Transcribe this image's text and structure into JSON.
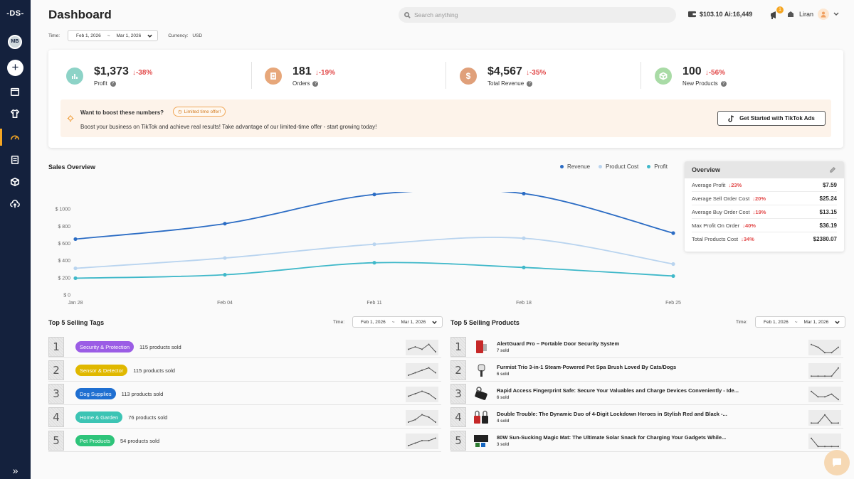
{
  "sidebar": {
    "logo": "-DS-",
    "avatar_initials": "MB",
    "add_label": "+",
    "items": [
      "store-icon",
      "tshirt-icon",
      "gauge-icon",
      "document-icon",
      "box-icon",
      "cloud-upload-icon"
    ],
    "active_item": "gauge-icon",
    "expand_label": "»"
  },
  "header": {
    "title": "Dashboard",
    "search_placeholder": "Search anything",
    "balance": "$103.10 Ai:16,449",
    "notification_count": "1",
    "user_name": "Liran"
  },
  "filters": {
    "time_label": "Time:",
    "date_from": "Feb 1, 2026",
    "date_sep": "~",
    "date_to": "Mar 1, 2026",
    "currency_label": "Currency:",
    "currency": "USD"
  },
  "kpis": [
    {
      "value": "$1,373",
      "change": "↓-38%",
      "label": "Profit",
      "color": "#8dd3c7"
    },
    {
      "value": "181",
      "change": "↓-19%",
      "label": "Orders",
      "color": "#e7a77a"
    },
    {
      "value": "$4,567",
      "change": "↓-35%",
      "label": "Total Revenue",
      "color": "#e0a07a"
    },
    {
      "value": "100",
      "change": "↓-56%",
      "label": "New Products",
      "color": "#a9dba6"
    }
  ],
  "promo": {
    "title": "Want to boost these numbers?",
    "badge": "Limited time offer!",
    "subtitle": "Boost your business on TikTok and achieve real results! Take advantage of our limited-time offer - start growing today!",
    "button": "Get Started with TikTok Ads"
  },
  "sales": {
    "title": "Sales Overview",
    "legend": [
      {
        "name": "Revenue",
        "color": "#2b6cc4"
      },
      {
        "name": "Product Cost",
        "color": "#b9d4ef"
      },
      {
        "name": "Profit",
        "color": "#3fb8c9"
      }
    ]
  },
  "chart_data": {
    "type": "line",
    "title": "Sales Overview",
    "x": [
      "Jan 28",
      "Feb 04",
      "Feb 11",
      "Feb 18",
      "Feb 25"
    ],
    "x_ticks": [
      "Jan 28",
      "Feb 04",
      "Feb 11",
      "Feb 18",
      "Feb 25"
    ],
    "y_ticks": [
      "$ 0",
      "$ 200",
      "$ 400",
      "$ 600",
      "$ 800",
      "$ 1000"
    ],
    "ylim": [
      0,
      1200
    ],
    "series": [
      {
        "name": "Revenue",
        "color": "#2b6cc4",
        "values": [
          650,
          830,
          1170,
          1180,
          720
        ]
      },
      {
        "name": "Product Cost",
        "color": "#b9d4ef",
        "values": [
          310,
          430,
          590,
          660,
          360
        ]
      },
      {
        "name": "Profit",
        "color": "#3fb8c9",
        "values": [
          195,
          235,
          375,
          320,
          220
        ]
      }
    ],
    "grid": false,
    "legend": "top-right"
  },
  "overview": {
    "title": "Overview",
    "rows": [
      {
        "label": "Average Profit",
        "change": "↓23%",
        "value": "$7.59"
      },
      {
        "label": "Average Sell Order Cost",
        "change": "↓20%",
        "value": "$25.24"
      },
      {
        "label": "Average Buy Order Cost",
        "change": "↓19%",
        "value": "$13.15"
      },
      {
        "label": "Max Profit On Order",
        "change": "↓40%",
        "value": "$36.19"
      },
      {
        "label": "Total Products Cost",
        "change": "↓34%",
        "value": "$2380.07"
      }
    ]
  },
  "top_tags": {
    "title": "Top 5 Selling Tags",
    "rows": [
      {
        "rank": "1",
        "tag": "Security & Protection",
        "color": "#9b5de5",
        "sold": "115 products sold"
      },
      {
        "rank": "2",
        "tag": "Sensor & Detector",
        "color": "#e0b800",
        "sold": "115 products sold"
      },
      {
        "rank": "3",
        "tag": "Dog Supplies",
        "color": "#1f6fd1",
        "sold": "113 products sold"
      },
      {
        "rank": "4",
        "tag": "Home & Garden",
        "color": "#3cc4b4",
        "sold": "76 products sold"
      },
      {
        "rank": "5",
        "tag": "Pet Products",
        "color": "#2ec47a",
        "sold": "54 products sold"
      }
    ]
  },
  "top_products": {
    "title": "Top 5 Selling Products",
    "rows": [
      {
        "rank": "1",
        "name": "AlertGuard Pro – Portable Door Security System",
        "sold": "7 sold"
      },
      {
        "rank": "2",
        "name": "Furmist Trio 3-in-1 Steam-Powered Pet Spa Brush Loved By Cats/Dogs",
        "sold": "6 sold"
      },
      {
        "rank": "3",
        "name": "Rapid Access Fingerprint Safe: Secure Your Valuables and Charge Devices Conveniently - Ide...",
        "sold": "6 sold"
      },
      {
        "rank": "4",
        "name": "Double Trouble: The Dynamic Duo of 4-Digit Lockdown Heroes in Stylish Red and Black -...",
        "sold": "4 sold"
      },
      {
        "rank": "5",
        "name": "80W Sun-Sucking Magic Mat: The Ultimate Solar Snack for Charging Your Gadgets While...",
        "sold": "3 sold"
      }
    ]
  }
}
